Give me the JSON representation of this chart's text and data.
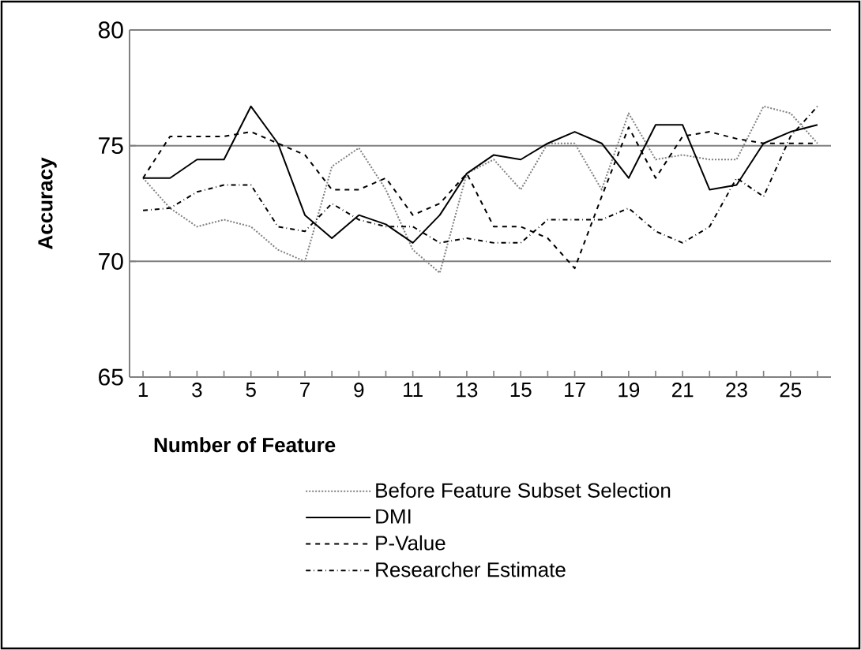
{
  "chart_data": {
    "type": "line",
    "xlabel": "Number of Feature",
    "ylabel": "Accuracy",
    "categories": [
      "1",
      null,
      "3",
      null,
      "5",
      null,
      "7",
      null,
      "9",
      null,
      "11",
      null,
      "13",
      null,
      "15",
      null,
      "17",
      null,
      "19",
      null,
      "21",
      null,
      "23",
      null,
      "25",
      null
    ],
    "ylim": [
      65,
      80
    ],
    "yticks": [
      65,
      70,
      75,
      80
    ],
    "grid": "y",
    "legend": "bottom",
    "series": [
      {
        "name": "Before Feature Subset Selection",
        "color": "#808080",
        "line_style": "dotted",
        "values": [
          73.6,
          72.3,
          71.5,
          71.8,
          71.5,
          70.5,
          70.0,
          74.1,
          74.9,
          73.1,
          70.5,
          69.5,
          73.8,
          74.4,
          73.1,
          75.1,
          75.1,
          73.1,
          76.4,
          74.4,
          74.6,
          74.4,
          74.4,
          76.7,
          76.4,
          75.1
        ]
      },
      {
        "name": "DMI",
        "color": "#000000",
        "line_style": "solid",
        "values": [
          73.6,
          73.6,
          74.4,
          74.4,
          76.7,
          75.1,
          72.0,
          71.0,
          72.0,
          71.6,
          70.8,
          72.0,
          73.8,
          74.6,
          74.4,
          75.1,
          75.6,
          75.1,
          73.6,
          75.9,
          75.9,
          73.1,
          73.3,
          75.1,
          75.6,
          75.9
        ]
      },
      {
        "name": "P-Value",
        "color": "#000000",
        "line_style": "dashed",
        "values": [
          73.6,
          75.4,
          75.4,
          75.4,
          75.6,
          75.1,
          74.6,
          73.1,
          73.1,
          73.6,
          72.0,
          72.5,
          73.8,
          71.5,
          71.5,
          71.0,
          69.7,
          72.8,
          75.8,
          73.6,
          75.4,
          75.6,
          75.3,
          75.1,
          75.1,
          75.1
        ]
      },
      {
        "name": "Researcher Estimate",
        "color": "#000000",
        "line_style": "dashdot",
        "values": [
          72.2,
          72.3,
          73.0,
          73.3,
          73.3,
          71.5,
          71.3,
          72.5,
          71.8,
          71.5,
          71.5,
          70.8,
          71.0,
          70.8,
          70.8,
          71.8,
          71.8,
          71.8,
          72.3,
          71.3,
          70.8,
          71.5,
          73.6,
          72.8,
          75.4,
          76.7
        ]
      }
    ]
  }
}
